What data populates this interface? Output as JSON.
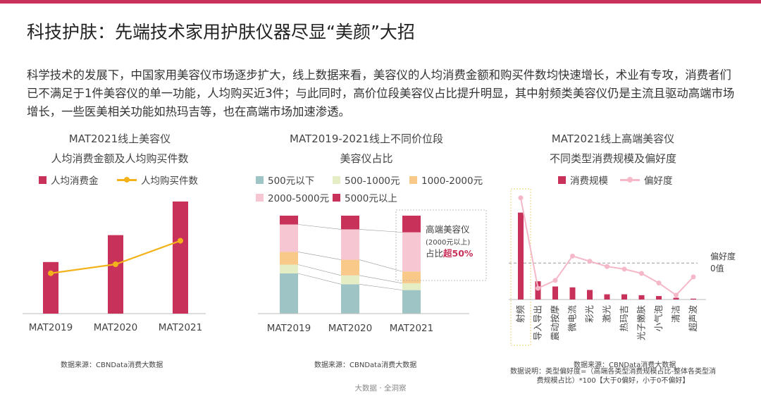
{
  "page": {
    "title": "科技护肤：先端技术家用护肤仪器尽显“美颜”大招",
    "intro": "科学技术的发展下，中国家用美容仪市场逐步扩大，线上数据来看，美容仪的人均消费金额和购买件数均快速增长，术业有专攻，消费者们已不满足于1件美容仪的单一功能，人均购买近3件；与此同时，高价位段美容仪占比提升明显，其中射频类美容仪仍是主流且驱动高端市场增长，一些医美相关功能如热玛吉等，也在高端市场加速渗透。",
    "footer": "大数据 · 全洞察",
    "colors": {
      "accent": "#C8315A",
      "gold": "#F2B31A",
      "pink": "#F5B8C8"
    }
  },
  "chart_data": [
    {
      "type": "bar",
      "title": "MAT2021线上美容仪",
      "subtitle": "人均消费金额及人均购买件数",
      "categories": [
        "MAT2019",
        "MAT2020",
        "MAT2021"
      ],
      "series": [
        {
          "name": "人均消费金",
          "kind": "bar",
          "color": "#C8315A",
          "values": [
            0.46,
            0.7,
            1.0
          ]
        },
        {
          "name": "人均购买件数",
          "kind": "line",
          "color": "#F2B31A",
          "values": [
            0.36,
            0.44,
            0.65
          ]
        }
      ],
      "ylim": [
        0,
        1.1
      ],
      "source": "数据来源：CBNData消费大数据"
    },
    {
      "type": "bar",
      "stacked": true,
      "title": "MAT2019-2021线上不同价位段",
      "subtitle": "美容仪占比",
      "categories": [
        "MAT2019",
        "MAT2020",
        "MAT2021"
      ],
      "series": [
        {
          "name": "500元以下",
          "color": "#9FC4C6",
          "values": [
            0.41,
            0.3,
            0.24
          ]
        },
        {
          "name": "500-1000元",
          "color": "#E4EDC4",
          "values": [
            0.09,
            0.09,
            0.07
          ]
        },
        {
          "name": "1000-2000元",
          "color": "#F9C98A",
          "values": [
            0.13,
            0.16,
            0.12
          ]
        },
        {
          "name": "2000-5000元",
          "color": "#F7C6D3",
          "values": [
            0.28,
            0.31,
            0.4
          ]
        },
        {
          "name": "5000元以上",
          "color": "#C8315A",
          "values": [
            0.09,
            0.14,
            0.17
          ]
        }
      ],
      "ylim": [
        0,
        1
      ],
      "annotation": {
        "line1": "高端美容仪",
        "line2": "(2000元以上)",
        "line3_prefix": "占比",
        "line3_emph": "超50%"
      },
      "source": "数据来源：CBNData消费大数据"
    },
    {
      "type": "bar",
      "title": "MAT2021线上高端美容仪",
      "subtitle": "不同类型消费规模及偏好度",
      "categories": [
        "射频",
        "导入导出",
        "震动按摩",
        "微电流",
        "彩光",
        "激光",
        "热玛吉",
        "光子嫩肤",
        "小气泡",
        "清洁",
        "超声波"
      ],
      "series": [
        {
          "name": "消费规模",
          "kind": "bar",
          "color": "#C8315A",
          "values": [
            1.0,
            0.21,
            0.15,
            0.14,
            0.11,
            0.06,
            0.06,
            0.05,
            0.04,
            0.02,
            0.01
          ]
        },
        {
          "name": "偏好度",
          "kind": "line",
          "color": "#F5B8C8",
          "values": [
            1.17,
            0.13,
            0.22,
            0.5,
            0.44,
            0.38,
            0.35,
            0.3,
            0.19,
            0.05,
            0.26
          ]
        }
      ],
      "ylim": [
        0,
        1.2
      ],
      "reference": {
        "value": 0.42,
        "label1": "偏好度",
        "label2": "0值"
      },
      "source": "数据来源：CBNData消费大数据",
      "note": "数据说明：类型偏好度=（高端各类型消费规模占比-整体各类型消费规模占比）*100【大于0偏好，小于0不偏好】"
    }
  ]
}
